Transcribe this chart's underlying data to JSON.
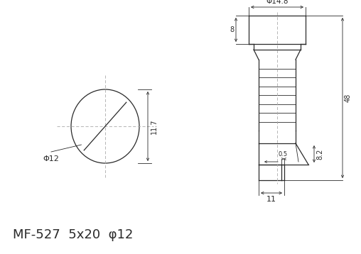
{
  "bg_color": "#ffffff",
  "line_color": "#2a2a2a",
  "center_line_color": "#aaaaaa",
  "title_text": "MF-527  5x20  φ12",
  "title_fontsize": 13,
  "annotation_fontsize": 7,
  "fig_width": 5.08,
  "fig_height": 3.58,
  "dpi": 100
}
